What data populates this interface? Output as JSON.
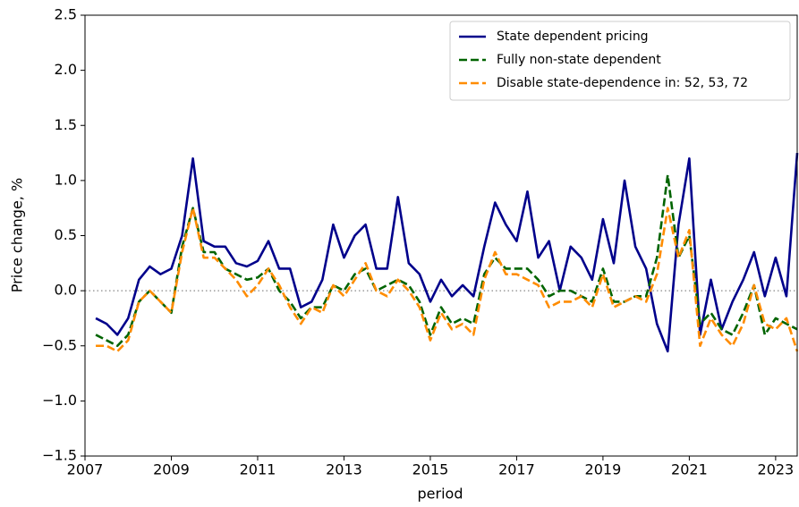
{
  "chart_data": {
    "type": "line",
    "xlabel": "period",
    "ylabel": "Price change, %",
    "x": [
      2007.25,
      2007.5,
      2007.75,
      2008,
      2008.25,
      2008.5,
      2008.75,
      2009,
      2009.25,
      2009.5,
      2009.75,
      2010,
      2010.25,
      2010.5,
      2010.75,
      2011,
      2011.25,
      2011.5,
      2011.75,
      2012,
      2012.25,
      2012.5,
      2012.75,
      2013,
      2013.25,
      2013.5,
      2013.75,
      2014,
      2014.25,
      2014.5,
      2014.75,
      2015,
      2015.25,
      2015.5,
      2015.75,
      2016,
      2016.25,
      2016.5,
      2016.75,
      2017,
      2017.25,
      2017.5,
      2017.75,
      2018,
      2018.25,
      2018.5,
      2018.75,
      2019,
      2019.25,
      2019.5,
      2019.75,
      2020,
      2020.25,
      2020.5,
      2020.75,
      2021,
      2021.25,
      2021.5,
      2021.75,
      2022,
      2022.25,
      2022.5,
      2022.75,
      2023,
      2023.25,
      2023.5
    ],
    "series": [
      {
        "name": "State dependent pricing",
        "color": "#00008b",
        "dash": "solid",
        "values": [
          -0.25,
          -0.3,
          -0.4,
          -0.25,
          0.1,
          0.22,
          0.15,
          0.2,
          0.5,
          1.2,
          0.45,
          0.4,
          0.4,
          0.25,
          0.22,
          0.27,
          0.45,
          0.2,
          0.2,
          -0.15,
          -0.1,
          0.1,
          0.6,
          0.3,
          0.5,
          0.6,
          0.2,
          0.2,
          0.85,
          0.25,
          0.15,
          -0.1,
          0.1,
          -0.05,
          0.05,
          -0.05,
          0.4,
          0.8,
          0.6,
          0.45,
          0.9,
          0.3,
          0.45,
          0.0,
          0.4,
          0.3,
          0.1,
          0.65,
          0.25,
          1.0,
          0.4,
          0.2,
          -0.3,
          -0.55,
          0.6,
          1.2,
          -0.4,
          0.1,
          -0.35,
          -0.1,
          0.1,
          0.35,
          -0.05,
          0.3,
          -0.05,
          1.25
        ]
      },
      {
        "name": "Fully non-state dependent",
        "color": "#006400",
        "dash": "dashed",
        "values": [
          -0.4,
          -0.45,
          -0.5,
          -0.4,
          -0.1,
          0.0,
          -0.1,
          -0.2,
          0.4,
          0.75,
          0.35,
          0.35,
          0.2,
          0.15,
          0.1,
          0.12,
          0.2,
          0.0,
          -0.1,
          -0.25,
          -0.15,
          -0.15,
          0.05,
          0.0,
          0.15,
          0.2,
          0.0,
          0.05,
          0.1,
          0.05,
          -0.1,
          -0.4,
          -0.15,
          -0.3,
          -0.25,
          -0.3,
          0.15,
          0.3,
          0.2,
          0.2,
          0.2,
          0.1,
          -0.05,
          0.0,
          0.0,
          -0.05,
          -0.1,
          0.2,
          -0.1,
          -0.1,
          -0.05,
          -0.05,
          0.3,
          1.05,
          0.3,
          0.5,
          -0.3,
          -0.2,
          -0.35,
          -0.4,
          -0.2,
          0.05,
          -0.4,
          -0.25,
          -0.3,
          -0.35
        ]
      },
      {
        "name": "Disable state-dependence in: 52, 53, 72",
        "color": "#ff8c00",
        "dash": "dashed",
        "values": [
          -0.5,
          -0.5,
          -0.55,
          -0.45,
          -0.1,
          0.0,
          -0.1,
          -0.2,
          0.35,
          0.75,
          0.3,
          0.3,
          0.2,
          0.1,
          -0.05,
          0.05,
          0.2,
          0.05,
          -0.15,
          -0.3,
          -0.15,
          -0.2,
          0.05,
          -0.05,
          0.1,
          0.25,
          0.0,
          -0.05,
          0.1,
          0.0,
          -0.15,
          -0.45,
          -0.2,
          -0.35,
          -0.3,
          -0.4,
          0.1,
          0.35,
          0.15,
          0.15,
          0.1,
          0.05,
          -0.15,
          -0.1,
          -0.1,
          -0.05,
          -0.15,
          0.15,
          -0.15,
          -0.1,
          -0.05,
          -0.1,
          0.15,
          0.75,
          0.3,
          0.55,
          -0.5,
          -0.25,
          -0.4,
          -0.5,
          -0.3,
          0.05,
          -0.3,
          -0.35,
          -0.25,
          -0.55
        ]
      }
    ],
    "xlim": [
      2007,
      2023.5
    ],
    "xticks": [
      2007,
      2009,
      2011,
      2013,
      2015,
      2017,
      2019,
      2021,
      2023
    ],
    "ylim": [
      -1.5,
      2.5
    ],
    "yticks": [
      {
        "value": -1.5,
        "label": "−1.5"
      },
      {
        "value": -1.0,
        "label": "−1.0"
      },
      {
        "value": -0.5,
        "label": "−0.5"
      },
      {
        "value": 0,
        "label": "0.0"
      },
      0.5,
      {
        "value": 1.0,
        "label": "1.0"
      },
      1.5,
      {
        "value": 2.0,
        "label": "2.0"
      },
      2.5
    ],
    "hline": 0,
    "legend": "upper right"
  }
}
